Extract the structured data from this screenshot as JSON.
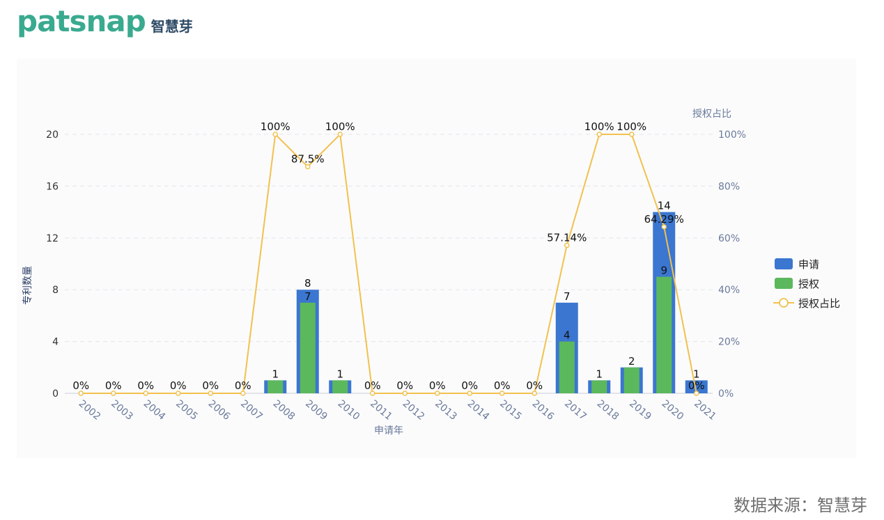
{
  "brand": {
    "logo_text": "patsnap",
    "logo_cn": "智慧芽"
  },
  "footer": {
    "source_label": "数据来源：智慧芽"
  },
  "colors": {
    "bar_apply": "#3b76d0",
    "bar_grant": "#5cb85c",
    "line": "#f2c14e",
    "axis_text": "#6a7a99"
  },
  "chart_data": {
    "type": "bar",
    "categories": [
      "2002",
      "2003",
      "2004",
      "2005",
      "2006",
      "2007",
      "2008",
      "2009",
      "2010",
      "2011",
      "2012",
      "2013",
      "2014",
      "2015",
      "2016",
      "2017",
      "2018",
      "2019",
      "2020",
      "2021"
    ],
    "series": [
      {
        "name": "申请",
        "type": "bar",
        "values": [
          0,
          0,
          0,
          0,
          0,
          0,
          1,
          8,
          1,
          0,
          0,
          0,
          0,
          0,
          0,
          7,
          1,
          2,
          14,
          1
        ]
      },
      {
        "name": "授权",
        "type": "bar",
        "values": [
          0,
          0,
          0,
          0,
          0,
          0,
          1,
          7,
          1,
          0,
          0,
          0,
          0,
          0,
          0,
          4,
          1,
          2,
          9,
          0
        ]
      },
      {
        "name": "授权占比",
        "type": "line",
        "axis": "right",
        "values": [
          0,
          0,
          0,
          0,
          0,
          0,
          100,
          87.5,
          100,
          0,
          0,
          0,
          0,
          0,
          0,
          57.14,
          100,
          100,
          64.29,
          0
        ],
        "labels": [
          "0%",
          "0%",
          "0%",
          "0%",
          "0%",
          "0%",
          "100%",
          "87.5%",
          "100%",
          "0%",
          "0%",
          "0%",
          "0%",
          "0%",
          "0%",
          "57.14%",
          "100%",
          "100%",
          "64.29%",
          "0%"
        ]
      }
    ],
    "xlabel": "申请年",
    "ylabel": "专利数量",
    "y2label": "授权占比",
    "ylim": [
      0,
      20
    ],
    "yticks": [
      "0",
      "4",
      "8",
      "12",
      "16",
      "20"
    ],
    "y2lim": [
      0,
      100
    ],
    "y2ticks": [
      "0%",
      "20%",
      "40%",
      "60%",
      "80%",
      "100%"
    ],
    "grid": true,
    "legend": "right"
  }
}
